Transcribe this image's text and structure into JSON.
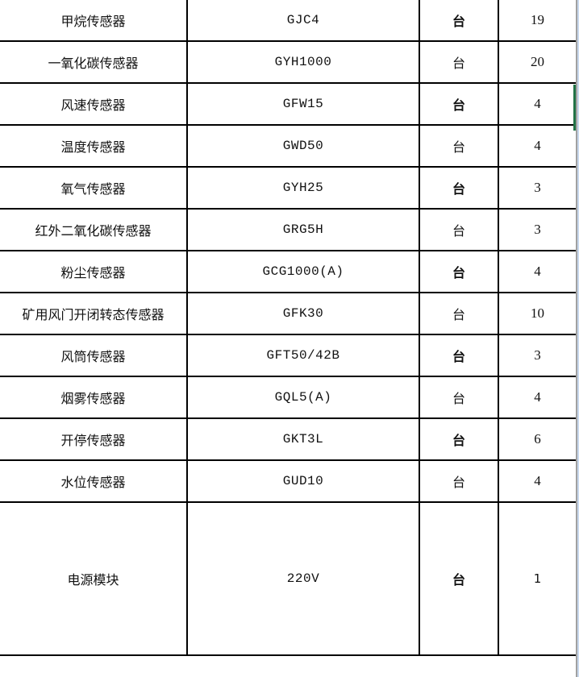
{
  "rows": [
    {
      "name": "甲烷传感器",
      "model": "GJC4",
      "unit": "台",
      "qty": "19",
      "unit_bold": true
    },
    {
      "name": "一氧化碳传感器",
      "model": "GYH1000",
      "unit": "台",
      "qty": "20",
      "unit_bold": false
    },
    {
      "name": "风速传感器",
      "model": "GFW15",
      "unit": "台",
      "qty": "4",
      "unit_bold": true
    },
    {
      "name": "温度传感器",
      "model": "GWD50",
      "unit": "台",
      "qty": "4",
      "unit_bold": false
    },
    {
      "name": "氧气传感器",
      "model": "GYH25",
      "unit": "台",
      "qty": "3",
      "unit_bold": true
    },
    {
      "name": "红外二氧化碳传感器",
      "model": "GRG5H",
      "unit": "台",
      "qty": "3",
      "unit_bold": false
    },
    {
      "name": "粉尘传感器",
      "model": "GCG1000(A)",
      "unit": "台",
      "qty": "4",
      "unit_bold": true
    },
    {
      "name": "矿用风门开闭转态传感器",
      "model": "GFK30",
      "unit": "台",
      "qty": "10",
      "unit_bold": false
    },
    {
      "name": "风筒传感器",
      "model": "GFT50/42B",
      "unit": "台",
      "qty": "3",
      "unit_bold": true
    },
    {
      "name": "烟雾传感器",
      "model": "GQL5(A)",
      "unit": "台",
      "qty": "4",
      "unit_bold": false
    },
    {
      "name": "开停传感器",
      "model": "GKT3L",
      "unit": "台",
      "qty": "6",
      "unit_bold": true
    },
    {
      "name": "水位传感器",
      "model": "GUD10",
      "unit": "台",
      "qty": "4",
      "unit_bold": false
    },
    {
      "name": "电源模块",
      "model": "220V",
      "unit": "台",
      "qty": "1",
      "unit_bold": true
    }
  ],
  "selection_color": "#217346"
}
